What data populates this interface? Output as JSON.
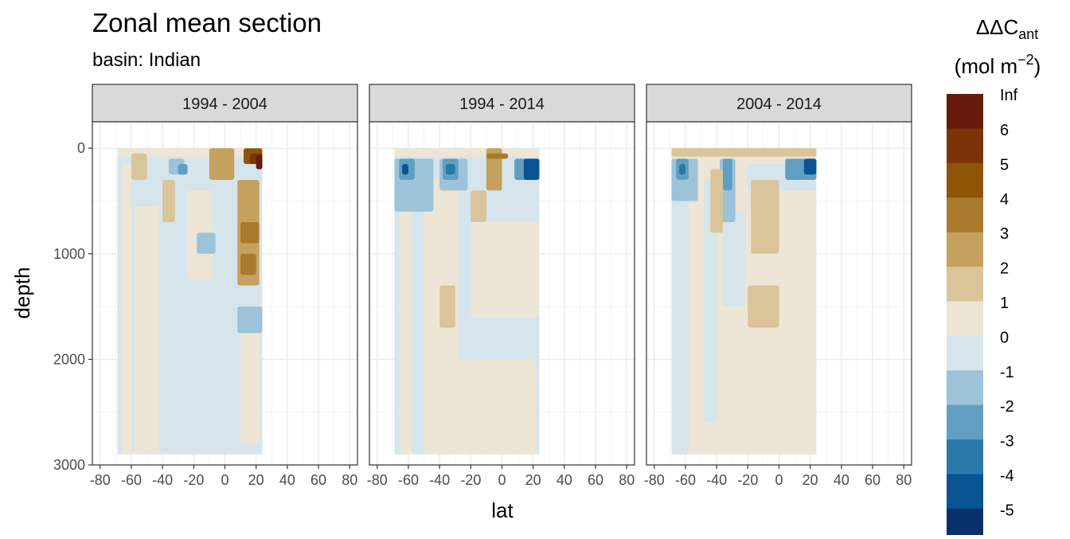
{
  "chart_data": {
    "type": "heatmap",
    "title": "Zonal mean section",
    "subtitle": "basin: Indian",
    "xlabel": "lat",
    "ylabel": "depth",
    "xlim": [
      -85,
      85
    ],
    "ylim": [
      3000,
      -250
    ],
    "y_reversed": true,
    "grid": true,
    "legend_position": "right",
    "x_ticks": [
      -80,
      -60,
      -40,
      -20,
      0,
      20,
      40,
      60,
      80
    ],
    "x_tick_labels": [
      "-80",
      "-60",
      "-40",
      "-20",
      "0",
      "20",
      "40",
      "60",
      "80"
    ],
    "y_ticks": [
      0,
      1000,
      2000,
      3000
    ],
    "y_tick_labels": [
      "0",
      "1000",
      "2000",
      "3000"
    ],
    "legend": {
      "title_main": "ΔΔC",
      "title_sub": "ant",
      "unit_open": "(mol m",
      "unit_sup": "−2",
      "unit_close": ")",
      "labels": [
        "Inf",
        "6",
        "5",
        "4",
        "3",
        "2",
        "1",
        "0",
        "-1",
        "-2",
        "-3",
        "-4",
        "-5"
      ],
      "colors": [
        "#67190b",
        "#7c3406",
        "#8f5507",
        "#a97a2c",
        "#c4a15f",
        "#dac499",
        "#ede5d5",
        "#d6e5ec",
        "#9dc3d9",
        "#609fc2",
        "#2b79ab",
        "#0b5493",
        "#08306b"
      ]
    },
    "panels": [
      {
        "label": "1994 - 2004",
        "lat_range": [
          -69,
          24
        ],
        "background_class": "-1 to 0",
        "regions": [
          {
            "class": "0 to 1",
            "lat": [
              -66,
              -60
            ],
            "depth": [
              150,
              2900
            ]
          },
          {
            "class": "0 to 1",
            "lat": [
              -58,
              -42
            ],
            "depth": [
              550,
              2900
            ]
          },
          {
            "class": "0 to 1",
            "lat": [
              -24,
              -8
            ],
            "depth": [
              400,
              1250
            ]
          },
          {
            "class": "0 to 1",
            "lat": [
              10,
              22
            ],
            "depth": [
              1500,
              2800
            ]
          },
          {
            "class": "0 to 1",
            "lat": [
              -69,
              24
            ],
            "depth": [
              0,
              80
            ]
          },
          {
            "class": "-2 to -1",
            "lat": [
              -18,
              -6
            ],
            "depth": [
              800,
              1000
            ]
          },
          {
            "class": "-2 to -1",
            "lat": [
              8,
              24
            ],
            "depth": [
              1500,
              1750
            ]
          },
          {
            "class": "-2 to -1",
            "lat": [
              -36,
              -26
            ],
            "depth": [
              100,
              250
            ]
          },
          {
            "class": "-3 to -2",
            "lat": [
              -30,
              -24
            ],
            "depth": [
              150,
              250
            ]
          },
          {
            "class": "1 to 2",
            "lat": [
              -60,
              -50
            ],
            "depth": [
              50,
              300
            ]
          },
          {
            "class": "1 to 2",
            "lat": [
              -40,
              -32
            ],
            "depth": [
              300,
              700
            ]
          },
          {
            "class": "2 to 3",
            "lat": [
              -10,
              6
            ],
            "depth": [
              0,
              300
            ]
          },
          {
            "class": "2 to 3",
            "lat": [
              8,
              22
            ],
            "depth": [
              300,
              1300
            ]
          },
          {
            "class": "3 to 4",
            "lat": [
              10,
              22
            ],
            "depth": [
              700,
              900
            ]
          },
          {
            "class": "3 to 4",
            "lat": [
              10,
              20
            ],
            "depth": [
              1000,
              1200
            ]
          },
          {
            "class": "4 to 5",
            "lat": [
              12,
              24
            ],
            "depth": [
              0,
              150
            ]
          },
          {
            "class": "5 to 6",
            "lat": [
              16,
              24
            ],
            "depth": [
              50,
              150
            ]
          },
          {
            "class": "6 to Inf",
            "lat": [
              20,
              24
            ],
            "depth": [
              60,
              200
            ]
          }
        ]
      },
      {
        "label": "1994 - 2014",
        "lat_range": [
          -69,
          24
        ],
        "background_class": "-1 to 0",
        "regions": [
          {
            "class": "0 to 1",
            "lat": [
              -66,
              -58
            ],
            "depth": [
              300,
              2900
            ]
          },
          {
            "class": "0 to 1",
            "lat": [
              -50,
              -28
            ],
            "depth": [
              300,
              2900
            ]
          },
          {
            "class": "0 to 1",
            "lat": [
              -20,
              24
            ],
            "depth": [
              700,
              1600
            ]
          },
          {
            "class": "0 to 1",
            "lat": [
              -30,
              22
            ],
            "depth": [
              2000,
              2900
            ]
          },
          {
            "class": "0 to 1",
            "lat": [
              -69,
              24
            ],
            "depth": [
              0,
              80
            ]
          },
          {
            "class": "1 to 2",
            "lat": [
              -40,
              -30
            ],
            "depth": [
              1300,
              1700
            ]
          },
          {
            "class": "1 to 2",
            "lat": [
              -20,
              -10
            ],
            "depth": [
              400,
              700
            ]
          },
          {
            "class": "-2 to -1",
            "lat": [
              -69,
              -44
            ],
            "depth": [
              100,
              600
            ]
          },
          {
            "class": "-2 to -1",
            "lat": [
              -40,
              -22
            ],
            "depth": [
              100,
              400
            ]
          },
          {
            "class": "-3 to -2",
            "lat": [
              -66,
              -56
            ],
            "depth": [
              100,
              300
            ]
          },
          {
            "class": "-3 to -2",
            "lat": [
              -38,
              -28
            ],
            "depth": [
              100,
              300
            ]
          },
          {
            "class": "-4 to -3",
            "lat": [
              -36,
              -30
            ],
            "depth": [
              150,
              250
            ]
          },
          {
            "class": "-5 to -4",
            "lat": [
              -64,
              -60
            ],
            "depth": [
              150,
              250
            ]
          },
          {
            "class": "-3 to -2",
            "lat": [
              8,
              24
            ],
            "depth": [
              100,
              300
            ]
          },
          {
            "class": "-5 to -4",
            "lat": [
              14,
              24
            ],
            "depth": [
              100,
              300
            ]
          },
          {
            "class": "2 to 3",
            "lat": [
              -10,
              0
            ],
            "depth": [
              0,
              400
            ]
          },
          {
            "class": "3 to 4",
            "lat": [
              -10,
              4
            ],
            "depth": [
              50,
              100
            ]
          }
        ]
      },
      {
        "label": "2004 - 2014",
        "lat_range": [
          -69,
          24
        ],
        "background_class": "0 to 1",
        "regions": [
          {
            "class": "-1 to 0",
            "lat": [
              -69,
              -58
            ],
            "depth": [
              300,
              2900
            ]
          },
          {
            "class": "-1 to 0",
            "lat": [
              -48,
              -40
            ],
            "depth": [
              300,
              2600
            ]
          },
          {
            "class": "-1 to 0",
            "lat": [
              -36,
              -22
            ],
            "depth": [
              600,
              1500
            ]
          },
          {
            "class": "-1 to 0",
            "lat": [
              -20,
              24
            ],
            "depth": [
              150,
              400
            ]
          },
          {
            "class": "-2 to -1",
            "lat": [
              -69,
              -52
            ],
            "depth": [
              100,
              500
            ]
          },
          {
            "class": "-2 to -1",
            "lat": [
              -38,
              -28
            ],
            "depth": [
              100,
              700
            ]
          },
          {
            "class": "-3 to -2",
            "lat": [
              -66,
              -58
            ],
            "depth": [
              100,
              300
            ]
          },
          {
            "class": "-3 to -2",
            "lat": [
              -36,
              -30
            ],
            "depth": [
              100,
              400
            ]
          },
          {
            "class": "-4 to -3",
            "lat": [
              -64,
              -60
            ],
            "depth": [
              150,
              250
            ]
          },
          {
            "class": "-3 to -2",
            "lat": [
              4,
              24
            ],
            "depth": [
              100,
              300
            ]
          },
          {
            "class": "-5 to -4",
            "lat": [
              16,
              24
            ],
            "depth": [
              100,
              250
            ]
          },
          {
            "class": "1 to 2",
            "lat": [
              -20,
              0
            ],
            "depth": [
              1300,
              1700
            ]
          },
          {
            "class": "1 to 2",
            "lat": [
              -18,
              0
            ],
            "depth": [
              300,
              1000
            ]
          },
          {
            "class": "1 to 2",
            "lat": [
              -69,
              24
            ],
            "depth": [
              0,
              80
            ]
          },
          {
            "class": "1 to 2",
            "lat": [
              -44,
              -36
            ],
            "depth": [
              200,
              800
            ]
          }
        ]
      }
    ]
  }
}
